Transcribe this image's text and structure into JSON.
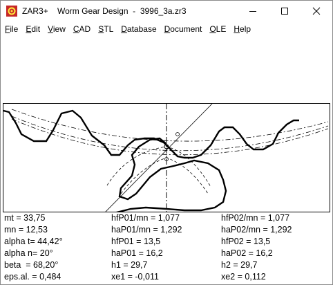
{
  "window": {
    "title": "ZAR3+    Worm Gear Design  -  3996_3a.zr3"
  },
  "menu": [
    {
      "pre": "",
      "u": "F",
      "post": "ile"
    },
    {
      "pre": "",
      "u": "E",
      "post": "dit"
    },
    {
      "pre": "",
      "u": "V",
      "post": "iew"
    },
    {
      "pre": "",
      "u": "C",
      "post": "AD"
    },
    {
      "pre": "",
      "u": "S",
      "post": "TL"
    },
    {
      "pre": "",
      "u": "D",
      "post": "atabase"
    },
    {
      "pre": "",
      "u": "D",
      "post": "ocument"
    },
    {
      "pre": "",
      "u": "O",
      "post": "LE"
    },
    {
      "pre": "",
      "u": "H",
      "post": "elp"
    }
  ],
  "values": {
    "c1": [
      "mt = 33,75",
      "mn = 12,53",
      "alpha t= 44,42°",
      "alpha n= 20°",
      "beta  = 68,20°",
      "eps.al. = 0,484"
    ],
    "c2": [
      "hfP01/mn = 1,077",
      "haP01/mn = 1,292",
      "hfP01 = 13,5",
      "haP01 = 16,2",
      "h1 = 29,7",
      "xe1 = -0,011"
    ],
    "c3": [
      "hfP02/mn = 1,077",
      "haP02/mn = 1,292",
      "hfP02 = 13,5",
      "haP02 = 16,2",
      "h2 = 29,7",
      "xe2 = 0,112"
    ]
  }
}
